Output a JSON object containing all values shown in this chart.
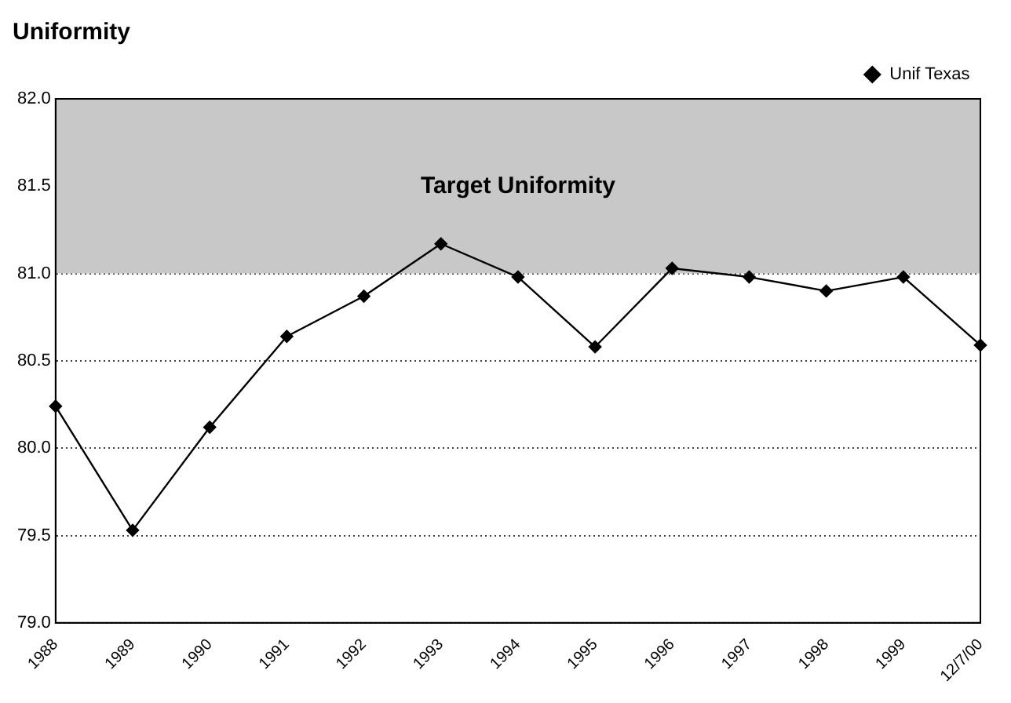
{
  "chart_data": {
    "type": "line",
    "title": "Uniformity",
    "categories": [
      "1988",
      "1989",
      "1990",
      "1991",
      "1992",
      "1993",
      "1994",
      "1995",
      "1996",
      "1997",
      "1998",
      "1999",
      "12/7/00"
    ],
    "series": [
      {
        "name": "Unif Texas",
        "color": "#000000",
        "values": [
          80.24,
          79.53,
          80.12,
          80.64,
          80.87,
          81.17,
          80.98,
          80.58,
          81.03,
          80.98,
          80.9,
          80.98,
          80.59
        ]
      }
    ],
    "ylim": [
      79,
      82
    ],
    "yticks": [
      {
        "value": 79,
        "label": "79.0"
      },
      {
        "value": 79.5,
        "label": "79.5"
      },
      {
        "value": 80,
        "label": "80.0"
      },
      {
        "value": 80.5,
        "label": "80.5"
      },
      {
        "value": 81,
        "label": "81.0"
      },
      {
        "value": 81.5,
        "label": "81.5"
      },
      {
        "value": 82,
        "label": "82.0"
      }
    ],
    "bands": [
      {
        "axis": "y",
        "from": 81,
        "to": 82,
        "label": "Target Uniformity",
        "color": "#c8c8c8"
      }
    ],
    "grid": "y",
    "legend": "top right",
    "marker": "diamond",
    "line_style": "solid"
  }
}
